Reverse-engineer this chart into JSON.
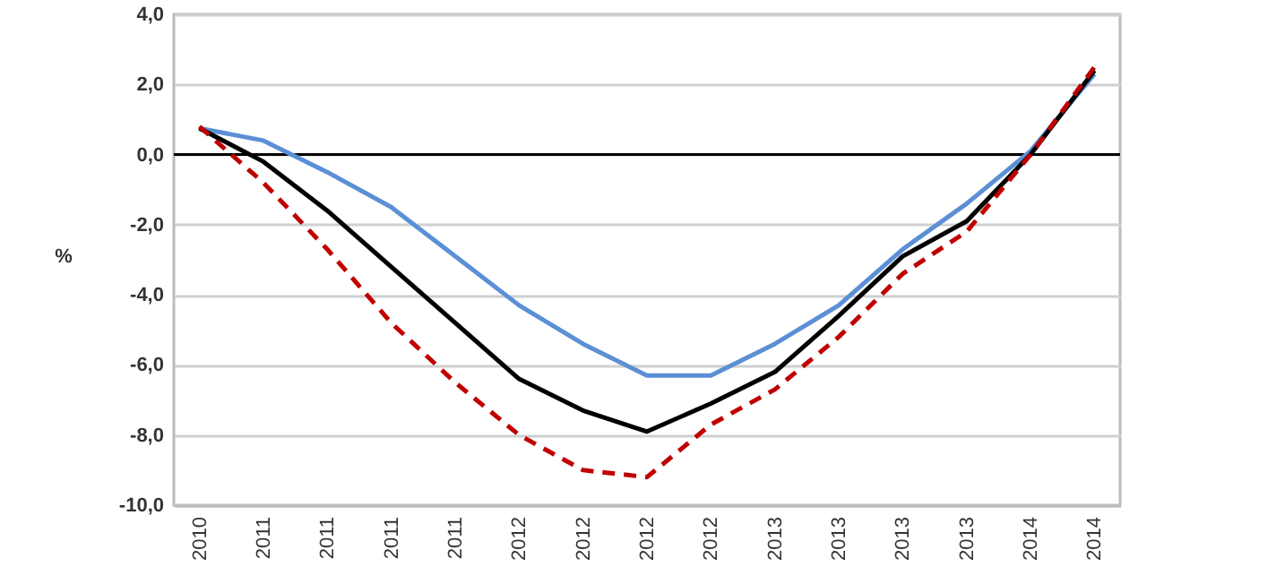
{
  "chart_data": {
    "type": "line",
    "ylabel": "%",
    "categories": [
      "2010",
      "2011",
      "2011",
      "2011",
      "2011",
      "2012",
      "2012",
      "2012",
      "2012",
      "2013",
      "2013",
      "2013",
      "2013",
      "2014",
      "2014"
    ],
    "series": [
      {
        "color": "#5b8fd6",
        "line_style": "solid",
        "values": [
          0.75,
          0.4,
          -0.5,
          -1.5,
          -2.9,
          -4.3,
          -5.4,
          -6.3,
          -6.3,
          -5.4,
          -4.3,
          -2.7,
          -1.4,
          0.1,
          2.3
        ]
      },
      {
        "color": "#000000",
        "line_style": "solid",
        "values": [
          0.75,
          -0.2,
          -1.6,
          -3.2,
          -4.8,
          -6.4,
          -7.3,
          -7.9,
          -7.1,
          -6.2,
          -4.6,
          -2.9,
          -1.9,
          0.0,
          2.4
        ]
      },
      {
        "color": "#c00000",
        "line_style": "dashed",
        "values": [
          0.8,
          -0.8,
          -2.7,
          -4.8,
          -6.5,
          -8.0,
          -9.0,
          -9.2,
          -7.7,
          -6.7,
          -5.2,
          -3.4,
          -2.2,
          0.0,
          2.5
        ]
      }
    ],
    "ylim": [
      -10,
      4
    ],
    "yticks": [
      {
        "value": -10,
        "label": "-10,0"
      },
      {
        "value": -8,
        "label": "-8,0"
      },
      {
        "value": -6,
        "label": "-6,0"
      },
      {
        "value": -4,
        "label": "-4,0"
      },
      {
        "value": -2,
        "label": "-2,0"
      },
      {
        "value": 0,
        "label": "0,0"
      },
      {
        "value": 2,
        "label": "2,0"
      },
      {
        "value": 4,
        "label": "4,0"
      }
    ],
    "grid": "y",
    "ref_lines": [
      {
        "axis": "y",
        "value": 0,
        "color": "#000000"
      }
    ]
  }
}
